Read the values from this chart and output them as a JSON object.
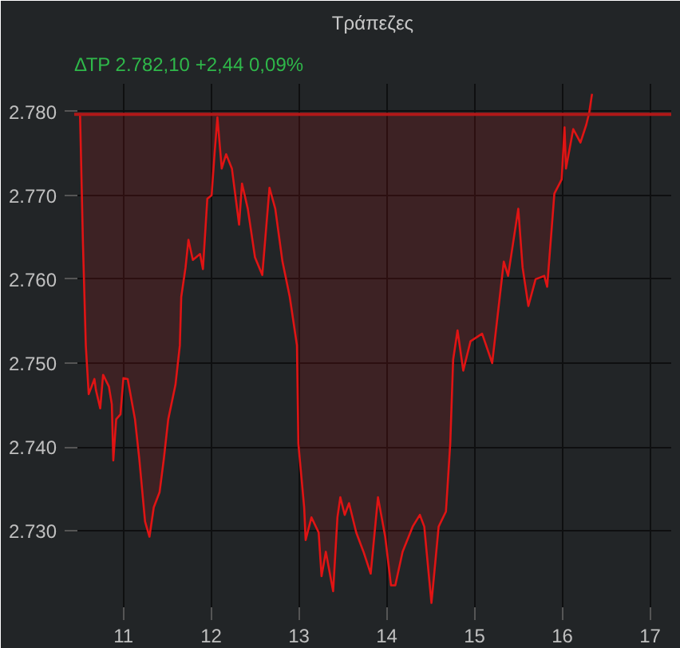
{
  "chart_data": {
    "type": "area",
    "title": "Τράπεζες",
    "subtitle": "ΔΤΡ 2.782,10 +2,44 0,09%",
    "x": [
      10.506,
      10.539,
      10.572,
      10.605,
      10.67,
      10.687,
      10.736,
      10.769,
      10.835,
      10.868,
      10.885,
      10.918,
      10.967,
      11.0,
      11.049,
      11.132,
      11.181,
      11.247,
      11.297,
      11.346,
      11.412,
      11.461,
      11.511,
      11.593,
      11.643,
      11.659,
      11.708,
      11.741,
      11.791,
      11.873,
      11.906,
      11.956,
      12.005,
      12.038,
      12.071,
      12.12,
      12.17,
      12.236,
      12.318,
      12.351,
      12.417,
      12.499,
      12.582,
      12.664,
      12.73,
      12.812,
      12.895,
      12.977,
      12.993,
      13.059,
      13.076,
      13.142,
      13.224,
      13.257,
      13.306,
      13.389,
      13.438,
      13.471,
      13.521,
      13.57,
      13.652,
      13.735,
      13.817,
      13.9,
      13.982,
      14.048,
      14.097,
      14.18,
      14.295,
      14.377,
      14.427,
      14.509,
      14.591,
      14.674,
      14.723,
      14.756,
      14.806,
      14.871,
      14.954,
      15.086,
      15.201,
      15.333,
      15.382,
      15.498,
      15.547,
      15.613,
      15.695,
      15.794,
      15.827,
      15.909,
      15.992,
      16.025,
      16.041,
      16.124,
      16.206,
      16.272,
      16.305,
      16.338
    ],
    "series": [
      {
        "color": "#e01414",
        "values": [
          2779.8,
          2764.4,
          2752.1,
          2746.3,
          2748.1,
          2746.8,
          2744.6,
          2748.6,
          2747.2,
          2745.1,
          2738.4,
          2743.3,
          2743.9,
          2748.2,
          2748.1,
          2743.3,
          2738.6,
          2731.1,
          2729.3,
          2732.8,
          2734.6,
          2738.6,
          2743.3,
          2747.4,
          2752.1,
          2757.9,
          2761.4,
          2764.7,
          2762.3,
          2763.0,
          2761.2,
          2769.6,
          2770.0,
          2774.9,
          2779.3,
          2773.2,
          2774.9,
          2773.2,
          2766.5,
          2771.4,
          2768.4,
          2762.6,
          2760.5,
          2770.9,
          2768.4,
          2762.1,
          2757.9,
          2752.1,
          2740.4,
          2732.8,
          2728.9,
          2731.6,
          2729.8,
          2724.6,
          2727.5,
          2722.8,
          2731.6,
          2734.0,
          2731.9,
          2733.3,
          2729.8,
          2727.5,
          2724.9,
          2734.0,
          2729.3,
          2723.5,
          2723.5,
          2727.5,
          2730.5,
          2731.9,
          2730.5,
          2721.4,
          2730.5,
          2732.3,
          2740.4,
          2750.4,
          2753.9,
          2749.1,
          2752.6,
          2753.5,
          2750.0,
          2762.1,
          2760.4,
          2768.4,
          2761.4,
          2756.8,
          2760.0,
          2760.4,
          2759.1,
          2770.2,
          2771.9,
          2778.1,
          2773.2,
          2777.9,
          2776.3,
          2778.4,
          2779.8,
          2782.1
        ]
      }
    ],
    "xlim": [
      10.44,
      17.24
    ],
    "ylim": [
      2720.5,
      2783.3
    ],
    "xticks": [
      11,
      12,
      13,
      14,
      15,
      16,
      17
    ],
    "yticks": [
      {
        "value": 2730,
        "label": "2.730"
      },
      {
        "value": 2740,
        "label": "2.740"
      },
      {
        "value": 2750,
        "label": "2.750"
      },
      {
        "value": 2760,
        "label": "2.760"
      },
      {
        "value": 2770,
        "label": "2.770"
      },
      {
        "value": 2780,
        "label": "2.780"
      }
    ],
    "ref_lines": [
      {
        "axis": "y",
        "value": 2779.66,
        "color": "#b01818"
      }
    ],
    "grid": true
  }
}
